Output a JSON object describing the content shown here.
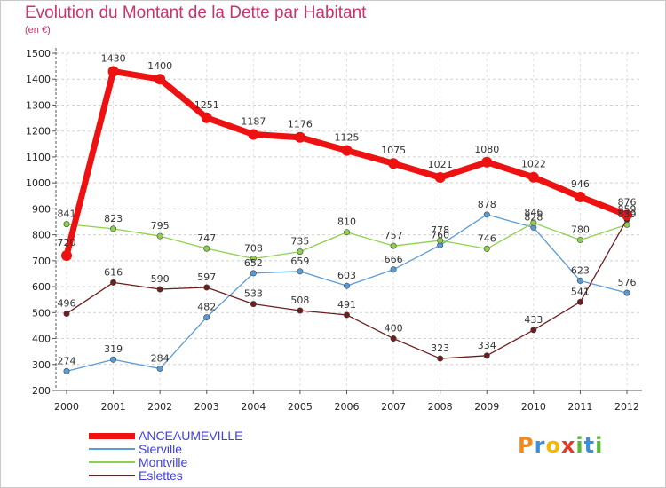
{
  "title": "Evolution du Montant de la Dette par Habitant",
  "subtitle": "(en €)",
  "logo": {
    "letters": [
      "P",
      "r",
      "o",
      "x",
      "i",
      "t",
      "i"
    ],
    "colors": [
      "#f08a1e",
      "#3f8fd6",
      "#f5b800",
      "#e23a2a",
      "#5cb83a",
      "#3f8fd6",
      "#5cb83a"
    ]
  },
  "chart_data": {
    "type": "line",
    "x": [
      "2000",
      "2001",
      "2002",
      "2003",
      "2004",
      "2005",
      "2006",
      "2007",
      "2008",
      "2009",
      "2010",
      "2011",
      "2012"
    ],
    "ylim": [
      200,
      1500
    ],
    "yticks": [
      200,
      300,
      400,
      500,
      600,
      700,
      800,
      900,
      1000,
      1100,
      1200,
      1300,
      1400,
      1500
    ],
    "grid": "horizontal dashed",
    "legend_position": "bottom-left",
    "series": [
      {
        "name": "ANCEAUMEVILLE",
        "color": "#ee1111",
        "values": [
          720,
          1430,
          1400,
          1251,
          1187,
          1176,
          1125,
          1075,
          1021,
          1080,
          1022,
          946,
          876
        ]
      },
      {
        "name": "Sierville",
        "color": "#5b9bd5",
        "values": [
          274,
          319,
          284,
          482,
          652,
          659,
          603,
          666,
          760,
          878,
          828,
          623,
          576
        ]
      },
      {
        "name": "Montville",
        "color": "#8fd14f",
        "values": [
          841,
          823,
          795,
          747,
          708,
          735,
          810,
          757,
          778,
          746,
          846,
          780,
          839
        ]
      },
      {
        "name": "Eslettes",
        "color": "#6e1e1e",
        "values": [
          496,
          616,
          590,
          597,
          533,
          508,
          491,
          400,
          323,
          334,
          433,
          541,
          859
        ]
      }
    ]
  }
}
